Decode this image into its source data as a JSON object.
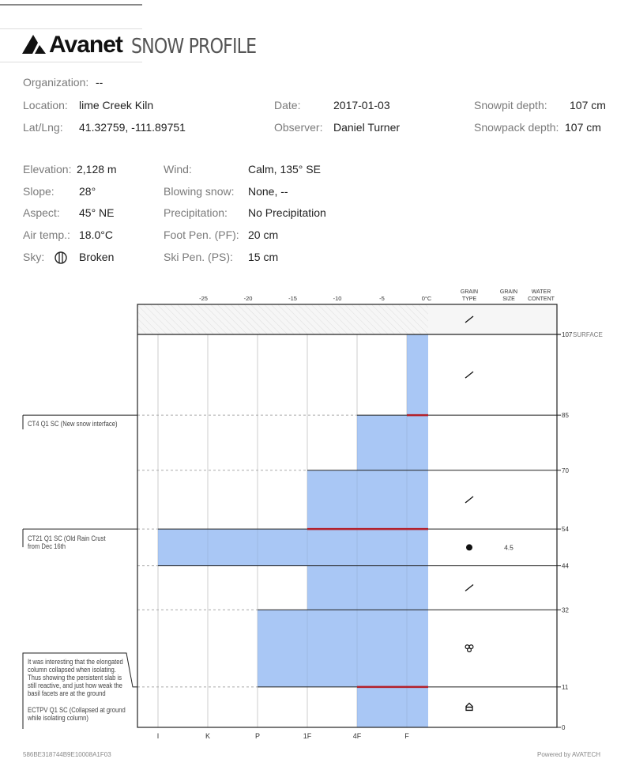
{
  "header": {
    "logo_text": "Avanet",
    "title": "SNOW PROFILE"
  },
  "meta": {
    "organization": {
      "label": "Organization:",
      "value": "--"
    },
    "location": {
      "label": "Location:",
      "value": "lime Creek Kiln"
    },
    "latlng": {
      "label": "Lat/Lng:",
      "value": "41.32759, -111.89751"
    },
    "date": {
      "label": "Date:",
      "value": "2017-01-03"
    },
    "observer": {
      "label": "Observer:",
      "value": "Daniel Turner"
    },
    "snowpit_depth": {
      "label": "Snowpit depth:",
      "value": "107 cm"
    },
    "snowpack_depth": {
      "label": "Snowpack depth:",
      "value": "107 cm"
    }
  },
  "conditions": {
    "elevation": {
      "label": "Elevation:",
      "value": "2,128 m"
    },
    "slope": {
      "label": "Slope:",
      "value": "28°"
    },
    "aspect": {
      "label": "Aspect:",
      "value": "45° NE"
    },
    "air_temp": {
      "label": "Air temp.:",
      "value": "18.0°C"
    },
    "sky": {
      "label": "Sky:",
      "value": "Broken",
      "icon": "broken-sky-icon"
    },
    "wind": {
      "label": "Wind:",
      "value": "Calm, 135° SE"
    },
    "blowing_snow": {
      "label": "Blowing snow:",
      "value": "None, --"
    },
    "precipitation": {
      "label": "Precipitation:",
      "value": "No Precipitation"
    },
    "foot_pen": {
      "label": "Foot Pen. (PF):",
      "value": "20 cm"
    },
    "ski_pen": {
      "label": "Ski Pen. (PS):",
      "value": "15 cm"
    }
  },
  "chart_data": {
    "type": "snow-profile",
    "temp_ticks": [
      "-25",
      "-20",
      "-15",
      "-10",
      "-5",
      "0°C"
    ],
    "temp_values": [
      -25,
      -20,
      -15,
      -10,
      -5,
      0
    ],
    "column_headers": {
      "grain_type": [
        "GRAIN",
        "TYPE"
      ],
      "grain_size": [
        "GRAIN",
        "SIZE"
      ],
      "water_content": [
        "WATER",
        "CONTENT"
      ]
    },
    "hardness_ticks": [
      "I",
      "K",
      "P",
      "1F",
      "4F",
      "F"
    ],
    "surface_label": "SURFACE",
    "depth_range": [
      0,
      107
    ],
    "surface_grain": "decomposing",
    "layers": [
      {
        "top": 107,
        "bottom": 85,
        "hardness": "F",
        "grain": "decomposing",
        "size": ""
      },
      {
        "top": 85,
        "bottom": 70,
        "hardness": "4F",
        "grain": "",
        "size": ""
      },
      {
        "top": 70,
        "bottom": 54,
        "hardness": "1F",
        "grain": "decomposing",
        "size": ""
      },
      {
        "top": 54,
        "bottom": 44,
        "hardness": "I",
        "grain": "melt-freeze-crust",
        "size": "4.5"
      },
      {
        "top": 44,
        "bottom": 32,
        "hardness": "1F",
        "grain": "decomposing",
        "size": ""
      },
      {
        "top": 32,
        "bottom": 11,
        "hardness": "P",
        "grain": "melt-clusters",
        "size": ""
      },
      {
        "top": 11,
        "bottom": 0,
        "hardness": "4F",
        "grain": "depth-hoar",
        "size": ""
      }
    ],
    "depth_labels": [
      "107",
      "85",
      "70",
      "54",
      "44",
      "32",
      "11",
      "0"
    ],
    "failures": [
      {
        "depth": 85
      },
      {
        "depth": 54
      },
      {
        "depth": 11
      }
    ],
    "tests": [
      {
        "depth": 85,
        "text": "CT4 Q1 SC (New snow interface)"
      },
      {
        "depth": 54,
        "text": "CT21 Q1 SC  (Old Rain Crust from Dec 16th"
      },
      {
        "depth": 11,
        "comment": "It was interesting that the elongated column collapsed when isolating.  Thus showing the persistent slab is still reactive, and just how weak the basil facets are at the ground",
        "text": "ECTPV Q1 SC (Collapsed at ground while isolating column)"
      }
    ],
    "colors": {
      "bar": "#a9c7f5",
      "failure": "#b3202a",
      "grid": "#ddd"
    }
  },
  "footer": {
    "id": "586BE318744B9E10008A1F03",
    "powered": "Powered by AVATECH"
  }
}
